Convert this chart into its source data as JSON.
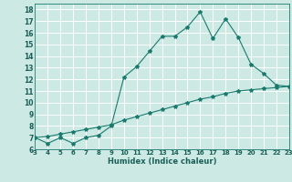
{
  "xlabel": "Humidex (Indice chaleur)",
  "background_color": "#cce9e4",
  "grid_color": "#b0d8d0",
  "line_color": "#1a7a6e",
  "marker_color": "#1a7a6e",
  "xlim": [
    3,
    23
  ],
  "ylim": [
    6,
    18.5
  ],
  "xticks": [
    3,
    4,
    5,
    6,
    7,
    8,
    9,
    10,
    11,
    12,
    13,
    14,
    15,
    16,
    17,
    18,
    19,
    20,
    21,
    22,
    23
  ],
  "yticks": [
    6,
    7,
    8,
    9,
    10,
    11,
    12,
    13,
    14,
    15,
    16,
    17,
    18
  ],
  "line1_x": [
    3,
    4,
    5,
    6,
    7,
    8,
    9,
    10,
    11,
    12,
    13,
    14,
    15,
    16,
    17,
    18,
    19,
    20,
    21,
    22,
    23
  ],
  "line1_y": [
    7.0,
    6.5,
    7.0,
    6.5,
    7.0,
    7.2,
    8.0,
    12.2,
    13.1,
    14.4,
    15.7,
    15.7,
    16.5,
    17.8,
    15.5,
    17.2,
    15.6,
    13.3,
    12.5,
    11.5,
    11.4
  ],
  "line2_x": [
    3,
    4,
    5,
    6,
    7,
    8,
    9,
    10,
    11,
    12,
    13,
    14,
    15,
    16,
    17,
    18,
    19,
    20,
    21,
    22,
    23
  ],
  "line2_y": [
    7.0,
    7.1,
    7.3,
    7.5,
    7.7,
    7.9,
    8.1,
    8.5,
    8.8,
    9.1,
    9.4,
    9.7,
    10.0,
    10.3,
    10.5,
    10.8,
    11.0,
    11.1,
    11.2,
    11.3,
    11.4
  ],
  "tick_color": "#1a5f58",
  "xlabel_fontsize": 6.0,
  "tick_fontsize": 5.0
}
